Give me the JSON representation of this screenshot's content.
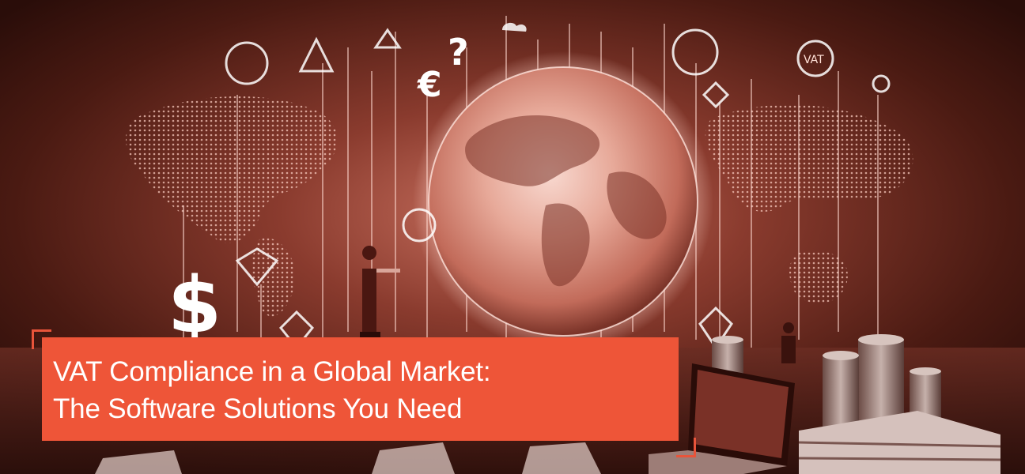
{
  "banner": {
    "title_line1": "VAT Compliance in a Global Market:",
    "title_line2": "The Software Solutions You Need"
  },
  "illustration": {
    "symbols": [
      "$",
      "€",
      "?",
      "$",
      "VAT"
    ],
    "colors": {
      "background": "#2a0e0a",
      "glow": "#f3b2a2",
      "accent": "#ee5538"
    }
  }
}
